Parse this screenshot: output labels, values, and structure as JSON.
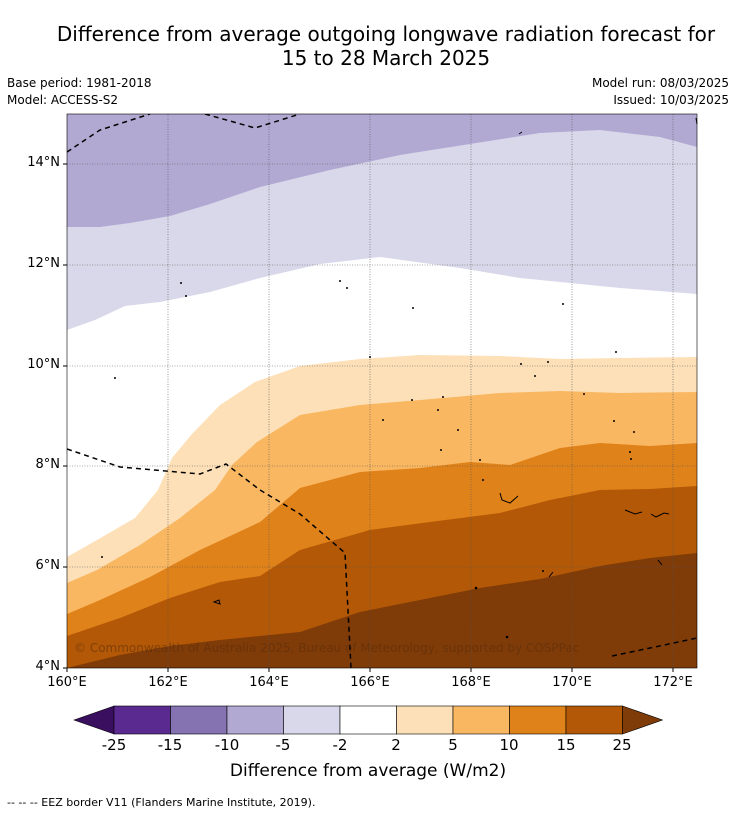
{
  "title_line1": "Difference from average outgoing longwave radiation forecast for",
  "title_line2": "15 to 28 March 2025",
  "meta": {
    "base_period": "Base period: 1981-2018",
    "model": "Model: ACCESS-S2",
    "model_run": "Model run: 08/03/2025",
    "issued": "Issued: 10/03/2025"
  },
  "map": {
    "lon_ticks": [
      "160°E",
      "162°E",
      "164°E",
      "166°E",
      "168°E",
      "170°E",
      "172°E"
    ],
    "lat_ticks": [
      "14°N",
      "12°N",
      "10°N",
      "8°N",
      "6°N",
      "4°N"
    ],
    "copyright": "© Commonwealth of Australia 2025, Bureau of Meteorology, supported by COSPPac"
  },
  "colorbar": {
    "labels": [
      "-25",
      "-15",
      "-10",
      "-5",
      "-2",
      "2",
      "5",
      "10",
      "15",
      "25"
    ],
    "colors": [
      "#3b0f60",
      "#5b2a90",
      "#8473b0",
      "#b2a9d3",
      "#d8d8ea",
      "#ffffff",
      "#fde0b7",
      "#f9b762",
      "#e0821a",
      "#b35806",
      "#7f3b08"
    ],
    "title": "Difference from average (W/m2)"
  },
  "footer": "--  --  -- EEZ border V11 (Flanders Marine Institute, 2019)."
}
